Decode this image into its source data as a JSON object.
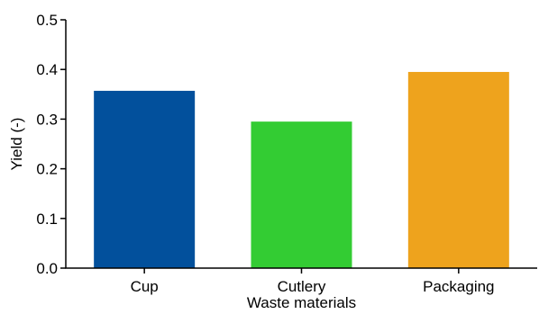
{
  "chart_data": {
    "type": "bar",
    "categories": [
      "Cup",
      "Cutlery",
      "Packaging"
    ],
    "values": [
      0.357,
      0.295,
      0.395
    ],
    "colors": [
      "#02509c",
      "#33cc33",
      "#eea31d"
    ],
    "title": "",
    "xlabel": "Waste materials",
    "ylabel": "Yield (-)",
    "ylim": [
      0,
      0.5
    ],
    "yticks": [
      "0.0",
      "0.1",
      "0.2",
      "0.3",
      "0.4",
      "0.5"
    ],
    "grid": false,
    "legend": "none"
  }
}
